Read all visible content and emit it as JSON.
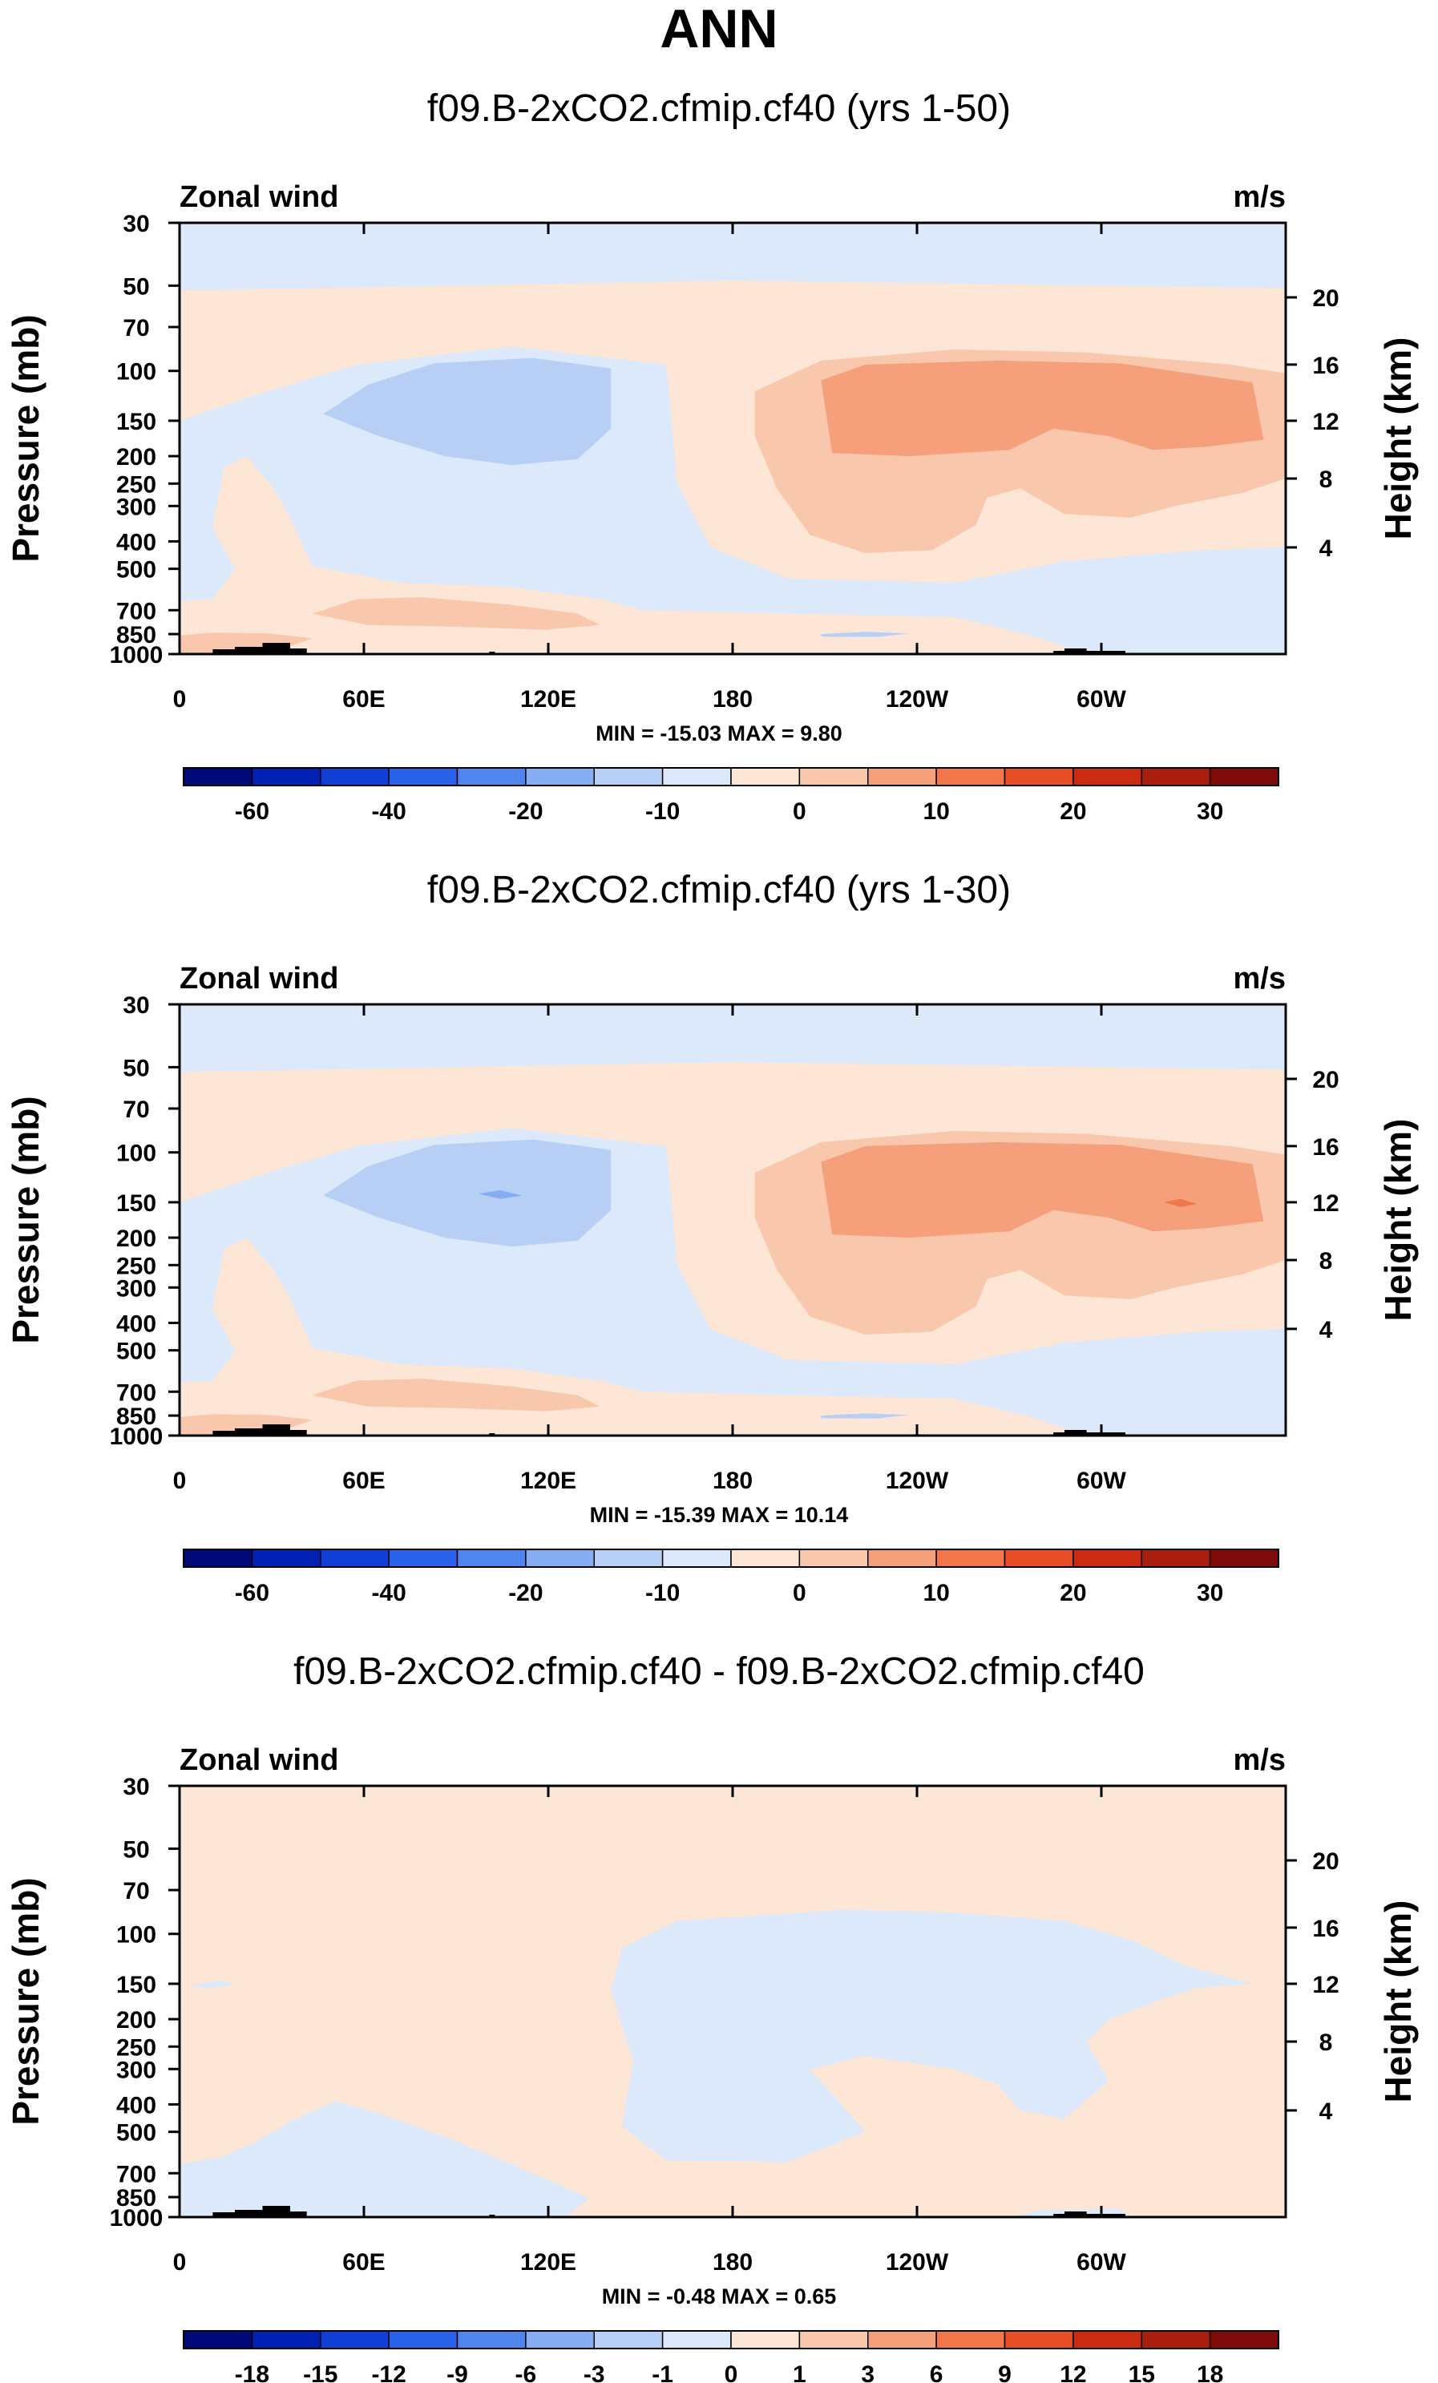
{
  "title": "ANN",
  "panels": [
    {
      "id": "panel-1",
      "title": "f09.B-2xCO2.cfmip.cf40 (yrs 1-50)",
      "left_label": "Zonal wind",
      "right_label": "m/s",
      "stats": "MIN = -15.03   MAX =   9.80",
      "colorbar": {
        "colors": [
          "#000a7a",
          "#0021b4",
          "#0f3fd5",
          "#2a63eb",
          "#4f86ee",
          "#86adf2",
          "#b8cff5",
          "#dce9fa",
          "#fde6d5",
          "#f8c7ac",
          "#f5a07a",
          "#f17649",
          "#e84e25",
          "#cb2b10",
          "#a91e0e",
          "#7f0a0a"
        ],
        "labels": [
          "-60",
          "-40",
          "-20",
          "-10",
          "0",
          "10",
          "20",
          "30"
        ]
      }
    },
    {
      "id": "panel-2",
      "title": "f09.B-2xCO2.cfmip.cf40 (yrs 1-30)",
      "left_label": "Zonal wind",
      "right_label": "m/s",
      "stats": "MIN = -15.39   MAX =  10.14",
      "colorbar": {
        "colors": [
          "#000a7a",
          "#0021b4",
          "#0f3fd5",
          "#2a63eb",
          "#4f86ee",
          "#86adf2",
          "#b8cff5",
          "#dce9fa",
          "#fde6d5",
          "#f8c7ac",
          "#f5a07a",
          "#f17649",
          "#e84e25",
          "#cb2b10",
          "#a91e0e",
          "#7f0a0a"
        ],
        "labels": [
          "-60",
          "-40",
          "-20",
          "-10",
          "0",
          "10",
          "20",
          "30"
        ]
      }
    },
    {
      "id": "panel-3",
      "title": "f09.B-2xCO2.cfmip.cf40 - f09.B-2xCO2.cfmip.cf40",
      "left_label": "Zonal wind",
      "right_label": "m/s",
      "stats": "MIN =  -0.48   MAX =   0.65",
      "colorbar": {
        "colors": [
          "#000a7a",
          "#0021b4",
          "#0f3fd5",
          "#2a63eb",
          "#4f86ee",
          "#86adf2",
          "#b8cff5",
          "#dce9fa",
          "#fde6d5",
          "#f8c7ac",
          "#f5a07a",
          "#f17649",
          "#e84e25",
          "#cb2b10",
          "#a91e0e",
          "#7f0a0a"
        ],
        "labels": [
          "-18",
          "-15",
          "-12",
          "-9",
          "-6",
          "-3",
          "-1",
          "0",
          "1",
          "3",
          "6",
          "9",
          "12",
          "15",
          "18"
        ]
      }
    }
  ],
  "chart_data": [
    {
      "type": "heatmap",
      "title": "f09.B-2xCO2.cfmip.cf40 (yrs 1-50)",
      "variable": "Zonal wind",
      "units": "m/s",
      "min": -15.03,
      "max": 9.8,
      "x_ticks": [
        "0",
        "60E",
        "120E",
        "180",
        "120W",
        "60W"
      ],
      "x_range": [
        0,
        360
      ],
      "y_label": "Pressure (mb)",
      "y_ticks": [
        "30",
        "50",
        "70",
        "100",
        "150",
        "200",
        "250",
        "300",
        "400",
        "500",
        "700",
        "850",
        "1000"
      ],
      "y_right_label": "Height (km)",
      "y_right_ticks": [
        "20",
        "16",
        "12",
        "8",
        "4"
      ]
    },
    {
      "type": "heatmap",
      "title": "f09.B-2xCO2.cfmip.cf40 (yrs 1-30)",
      "variable": "Zonal wind",
      "units": "m/s",
      "min": -15.39,
      "max": 10.14,
      "x_ticks": [
        "0",
        "60E",
        "120E",
        "180",
        "120W",
        "60W"
      ],
      "x_range": [
        0,
        360
      ],
      "y_label": "Pressure (mb)",
      "y_ticks": [
        "30",
        "50",
        "70",
        "100",
        "150",
        "200",
        "250",
        "300",
        "400",
        "500",
        "700",
        "850",
        "1000"
      ],
      "y_right_label": "Height (km)",
      "y_right_ticks": [
        "20",
        "16",
        "12",
        "8",
        "4"
      ]
    },
    {
      "type": "heatmap",
      "title": "f09.B-2xCO2.cfmip.cf40 - f09.B-2xCO2.cfmip.cf40",
      "variable": "Zonal wind",
      "units": "m/s",
      "min": -0.48,
      "max": 0.65,
      "x_ticks": [
        "0",
        "60E",
        "120E",
        "180",
        "120W",
        "60W"
      ],
      "x_range": [
        0,
        360
      ],
      "y_label": "Pressure (mb)",
      "y_ticks": [
        "30",
        "50",
        "70",
        "100",
        "150",
        "200",
        "250",
        "300",
        "400",
        "500",
        "700",
        "850",
        "1000"
      ],
      "y_right_label": "Height (km)",
      "y_right_ticks": [
        "20",
        "16",
        "12",
        "8",
        "4"
      ]
    }
  ]
}
